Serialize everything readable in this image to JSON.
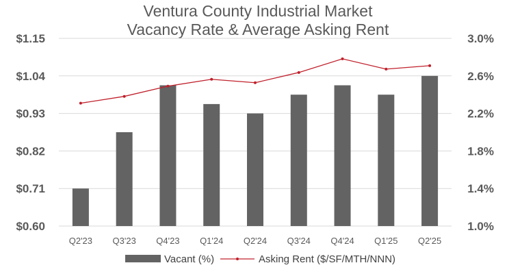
{
  "chart_data": {
    "type": "bar",
    "title": "Ventura County Industrial Market",
    "subtitle": "Vacancy Rate & Average Asking Rent",
    "categories": [
      "Q2'23",
      "Q3'23",
      "Q4'23",
      "Q1'24",
      "Q2'24",
      "Q3'24",
      "Q4'24",
      "Q1'25",
      "Q2'25"
    ],
    "series": [
      {
        "name": "Vacant (%)",
        "kind": "bar",
        "axis": "right",
        "values": [
          1.4,
          2.0,
          2.5,
          2.3,
          2.2,
          2.4,
          2.5,
          2.4,
          2.6
        ],
        "color": "#636363"
      },
      {
        "name": "Asking Rent ($/SF/MTH/NNN)",
        "kind": "line",
        "axis": "left",
        "values": [
          0.96,
          0.98,
          1.01,
          1.03,
          1.02,
          1.05,
          1.09,
          1.06,
          1.07
        ],
        "color": "#c0202b"
      }
    ],
    "left_axis": {
      "range": [
        0.6,
        1.15
      ],
      "ticks": [
        "$1.15",
        "$1.04",
        "$0.93",
        "$0.82",
        "$0.71",
        "$0.60"
      ],
      "tick_values": [
        1.15,
        1.04,
        0.93,
        0.82,
        0.71,
        0.6
      ]
    },
    "right_axis": {
      "range": [
        1.0,
        3.0
      ],
      "ticks": [
        "3.0%",
        "2.6%",
        "2.2%",
        "1.8%",
        "1.4%",
        "1.0%"
      ],
      "tick_values": [
        3.0,
        2.6,
        2.2,
        1.8,
        1.4,
        1.0
      ]
    },
    "grid": true,
    "legend_position": "bottom"
  }
}
